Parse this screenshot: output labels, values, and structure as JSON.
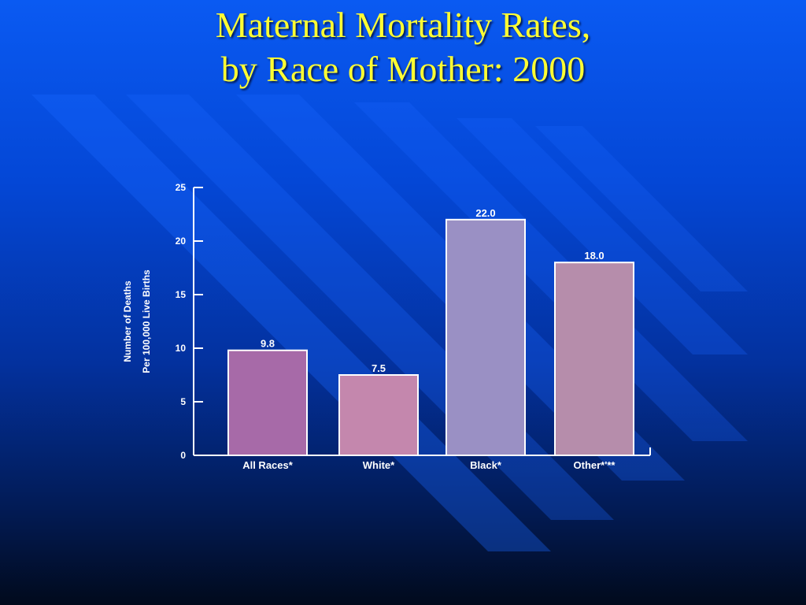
{
  "slide": {
    "title_line1": "Maternal Mortality Rates,",
    "title_line2": "by Race of Mother: 2000",
    "title_color": "#ffff33"
  },
  "chart_data": {
    "type": "bar",
    "categories": [
      "All Races*",
      "White*",
      "Black*",
      "Other*'**"
    ],
    "values": [
      9.8,
      7.5,
      22.0,
      18.0
    ],
    "value_labels": [
      "9.8",
      "7.5",
      "22.0",
      "18.0"
    ],
    "colors": [
      "#a76aa8",
      "#c487ad",
      "#9a90c4",
      "#b68dab"
    ],
    "ylabel_line1": "Number of Deaths",
    "ylabel_line2": "Per 100,000 Live Births",
    "ylim": [
      0,
      25
    ],
    "yticks": [
      0,
      5,
      10,
      15,
      20,
      25
    ],
    "grid": false,
    "legend": "none"
  }
}
